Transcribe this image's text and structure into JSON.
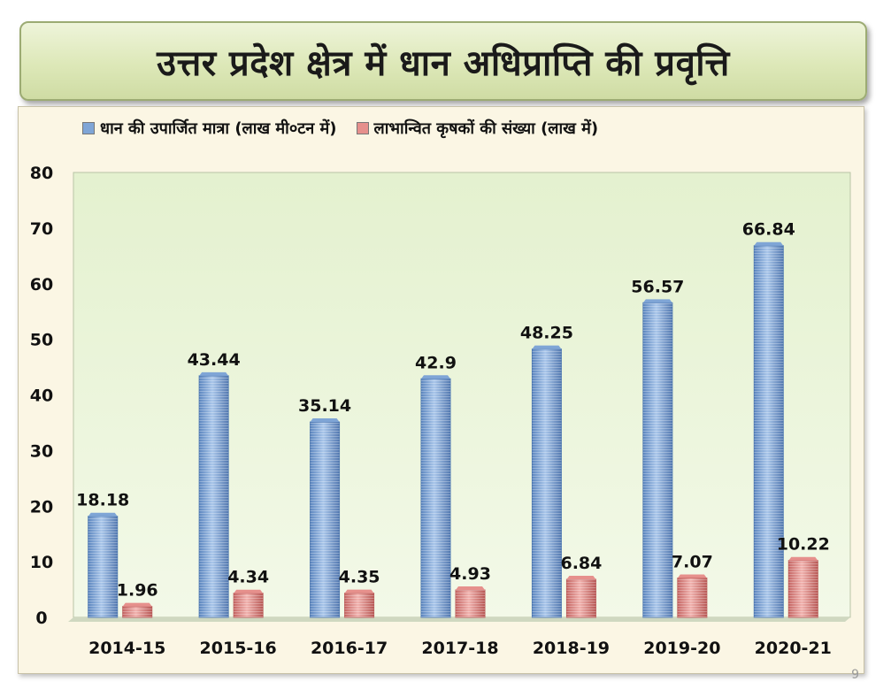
{
  "page": {
    "title": "उत्तर प्रदेश क्षेत्र में धान अधिप्राप्ति की प्रवृत्ति",
    "page_number": "9"
  },
  "chart_data": {
    "type": "bar",
    "categories": [
      "2014-15",
      "2015-16",
      "2016-17",
      "2017-18",
      "2018-19",
      "2019-20",
      "2020-21"
    ],
    "series": [
      {
        "name": "धान की उपार्जित मात्रा (लाख मी०टन में)",
        "values": [
          18.18,
          43.44,
          35.14,
          42.9,
          48.25,
          56.57,
          66.84
        ],
        "color": "#7fa5d6",
        "color_dark": "#4d77b0"
      },
      {
        "name": "लाभान्वित कृषकों की संख्या (लाख में)",
        "values": [
          1.96,
          4.34,
          4.35,
          4.93,
          6.84,
          7.07,
          10.22
        ],
        "color": "#e6908c",
        "color_dark": "#b95a58"
      }
    ],
    "value_labels": [
      [
        "18.18",
        "43.44",
        "35.14",
        "42.9",
        "48.25",
        "56.57",
        "66.84"
      ],
      [
        "1.96",
        "4.34",
        "4.35",
        "4.93",
        "6.84",
        "7.07",
        "10.22"
      ]
    ],
    "ylim": [
      0,
      80
    ],
    "yticks": [
      "0",
      "10",
      "20",
      "30",
      "40",
      "50",
      "60",
      "70",
      "80"
    ],
    "ytick_values": [
      0,
      10,
      20,
      30,
      40,
      50,
      60,
      70,
      80
    ],
    "legend_position": "top",
    "grid": false,
    "plot_background": "#e9f4d8"
  }
}
